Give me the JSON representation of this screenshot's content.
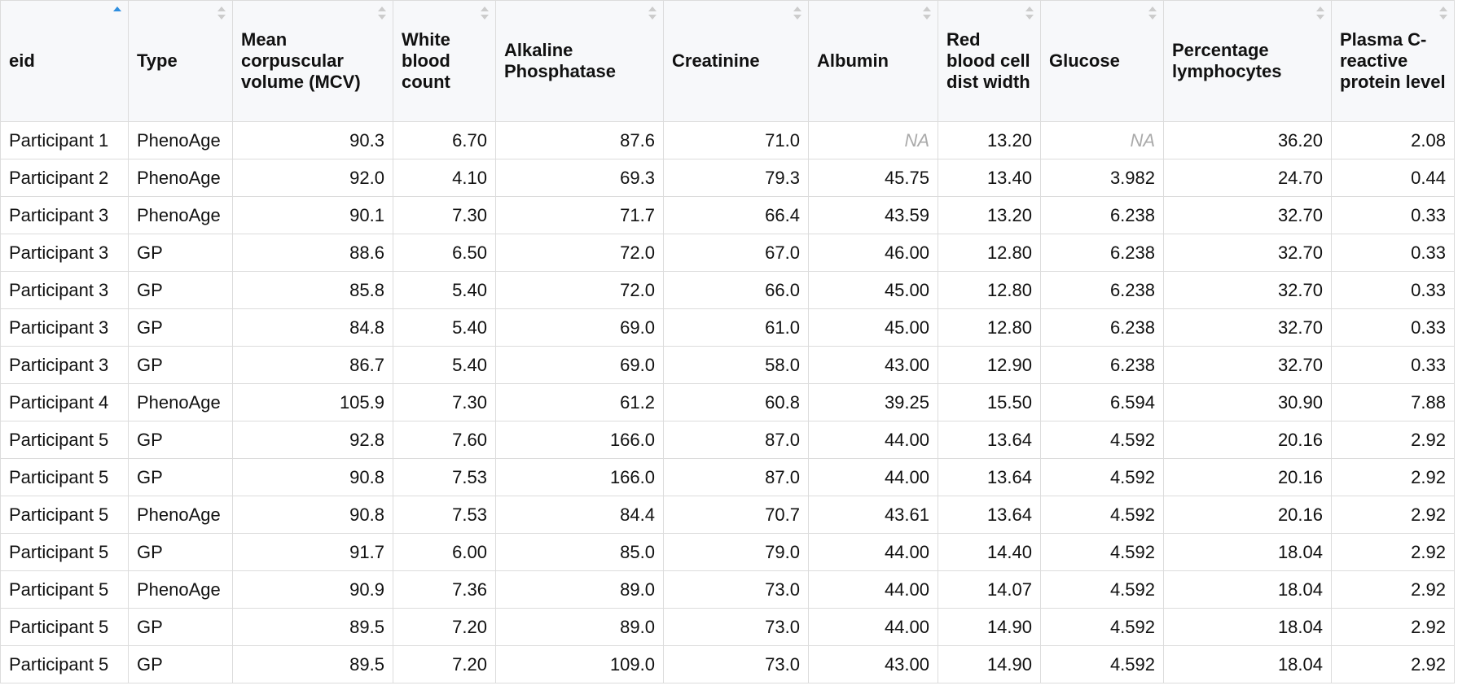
{
  "table": {
    "headers": [
      "eid",
      "Type",
      "Mean corpuscular volume (MCV)",
      "White blood count",
      "Alkaline Phosphatase",
      "Creatinine",
      "Albumin",
      "Red blood cell dist width",
      "Glucose",
      "Percentage lymphocytes",
      "Plasma C-reactive protein level"
    ],
    "rows": [
      [
        "Participant 1",
        "PhenoAge",
        "90.3",
        "6.70",
        "87.6",
        "71.0",
        "NA",
        "13.20",
        "NA",
        "36.20",
        "2.08"
      ],
      [
        "Participant 2",
        "PhenoAge",
        "92.0",
        "4.10",
        "69.3",
        "79.3",
        "45.75",
        "13.40",
        "3.982",
        "24.70",
        "0.44"
      ],
      [
        "Participant 3",
        "PhenoAge",
        "90.1",
        "7.30",
        "71.7",
        "66.4",
        "43.59",
        "13.20",
        "6.238",
        "32.70",
        "0.33"
      ],
      [
        "Participant 3",
        "GP",
        "88.6",
        "6.50",
        "72.0",
        "67.0",
        "46.00",
        "12.80",
        "6.238",
        "32.70",
        "0.33"
      ],
      [
        "Participant 3",
        "GP",
        "85.8",
        "5.40",
        "72.0",
        "66.0",
        "45.00",
        "12.80",
        "6.238",
        "32.70",
        "0.33"
      ],
      [
        "Participant 3",
        "GP",
        "84.8",
        "5.40",
        "69.0",
        "61.0",
        "45.00",
        "12.80",
        "6.238",
        "32.70",
        "0.33"
      ],
      [
        "Participant 3",
        "GP",
        "86.7",
        "5.40",
        "69.0",
        "58.0",
        "43.00",
        "12.90",
        "6.238",
        "32.70",
        "0.33"
      ],
      [
        "Participant 4",
        "PhenoAge",
        "105.9",
        "7.30",
        "61.2",
        "60.8",
        "39.25",
        "15.50",
        "6.594",
        "30.90",
        "7.88"
      ],
      [
        "Participant 5",
        "GP",
        "92.8",
        "7.60",
        "166.0",
        "87.0",
        "44.00",
        "13.64",
        "4.592",
        "20.16",
        "2.92"
      ],
      [
        "Participant 5",
        "GP",
        "90.8",
        "7.53",
        "166.0",
        "87.0",
        "44.00",
        "13.64",
        "4.592",
        "20.16",
        "2.92"
      ],
      [
        "Participant 5",
        "PhenoAge",
        "90.8",
        "7.53",
        "84.4",
        "70.7",
        "43.61",
        "13.64",
        "4.592",
        "20.16",
        "2.92"
      ],
      [
        "Participant 5",
        "GP",
        "91.7",
        "6.00",
        "85.0",
        "79.0",
        "44.00",
        "14.40",
        "4.592",
        "18.04",
        "2.92"
      ],
      [
        "Participant 5",
        "PhenoAge",
        "90.9",
        "7.36",
        "89.0",
        "73.0",
        "44.00",
        "14.07",
        "4.592",
        "18.04",
        "2.92"
      ],
      [
        "Participant 5",
        "GP",
        "89.5",
        "7.20",
        "89.0",
        "73.0",
        "44.00",
        "14.90",
        "4.592",
        "18.04",
        "2.92"
      ],
      [
        "Participant 5",
        "GP",
        "89.5",
        "7.20",
        "109.0",
        "73.0",
        "43.00",
        "14.90",
        "4.592",
        "18.04",
        "2.92"
      ]
    ]
  }
}
